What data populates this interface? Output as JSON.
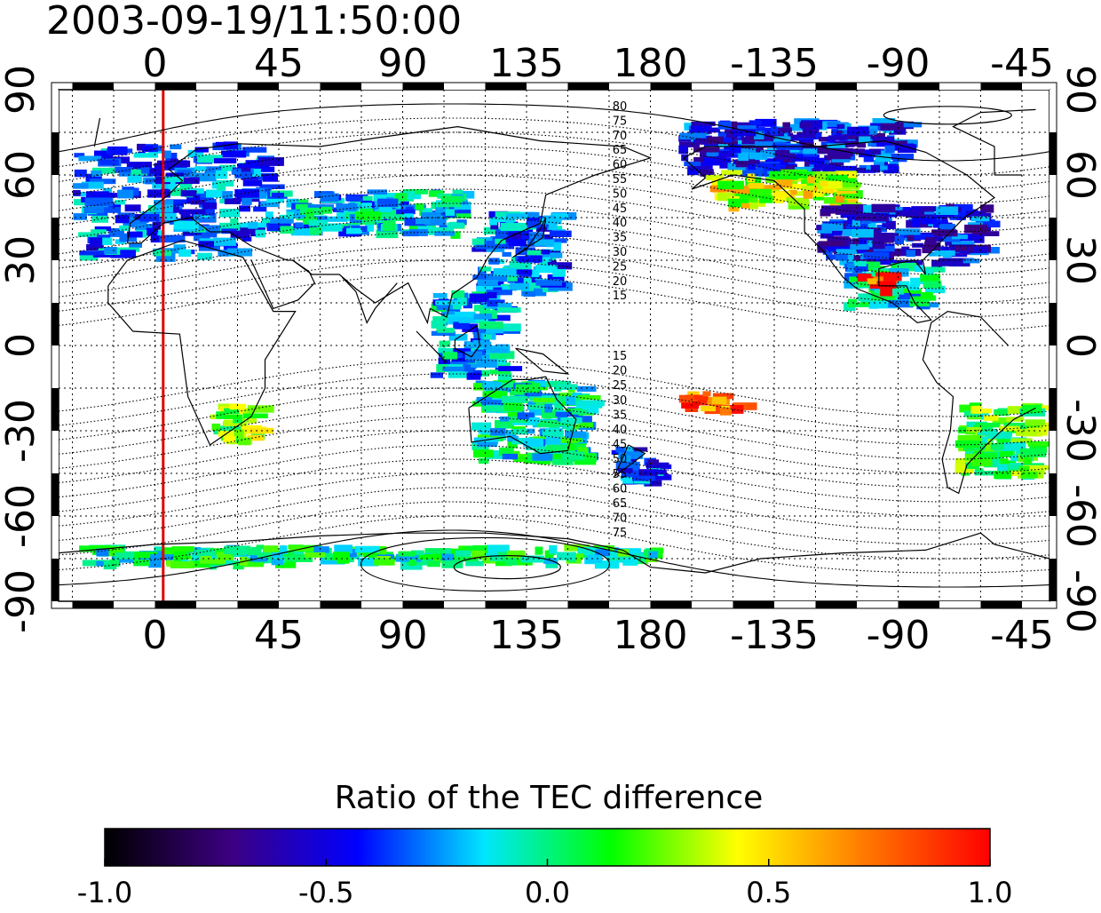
{
  "chart_data": {
    "type": "heatmap",
    "title": "2003-09-19/11:50:00",
    "projection": "equirectangular",
    "x_axis": {
      "center_longitude_deg": 145,
      "lon_range_deg": [
        -35,
        325
      ],
      "ticks": [
        {
          "lon": 0,
          "label": "0"
        },
        {
          "lon": 45,
          "label": "45"
        },
        {
          "lon": 90,
          "label": "90"
        },
        {
          "lon": 135,
          "label": "135"
        },
        {
          "lon": 180,
          "label": "180"
        },
        {
          "lon": 225,
          "label": "-135"
        },
        {
          "lon": 270,
          "label": "-90"
        },
        {
          "lon": 315,
          "label": "-45"
        }
      ]
    },
    "y_axis": {
      "lat_range_deg": [
        -90,
        90
      ],
      "ticks": [
        {
          "lat": 90,
          "label": "90"
        },
        {
          "lat": 60,
          "label": "60"
        },
        {
          "lat": 30,
          "label": "30"
        },
        {
          "lat": 0,
          "label": "0"
        },
        {
          "lat": -30,
          "label": "-30"
        },
        {
          "lat": -60,
          "label": "-60"
        },
        {
          "lat": -90,
          "label": "-90"
        }
      ]
    },
    "grid": true,
    "grid_spacing_deg": 15,
    "highlight_meridian_lon": 3,
    "highlight_color": "#e00000",
    "magnetic_latitude_labels": {
      "north": [
        "80",
        "75",
        "70",
        "65",
        "60",
        "55",
        "50",
        "45",
        "40",
        "35",
        "30",
        "25",
        "20",
        "15"
      ],
      "south": [
        "15",
        "20",
        "25",
        "30",
        "35",
        "40",
        "45",
        "50",
        "55",
        "60",
        "65",
        "70",
        "75"
      ]
    },
    "colorbar": {
      "title": "Ratio of the TEC difference",
      "range": [
        -1.0,
        1.0
      ],
      "tick_labels": [
        "-1.0",
        "-0.5",
        "0.0",
        "0.5",
        "1.0"
      ],
      "colors": [
        "#000000",
        "#3c0082",
        "#0000ff",
        "#00e6ff",
        "#00ff00",
        "#ffff00",
        "#ff7a00",
        "#ff0000"
      ]
    },
    "data_regions": [
      {
        "lon0": -30,
        "lon1": 40,
        "lat0": 32,
        "lat1": 72,
        "value": -0.3
      },
      {
        "lon0": 40,
        "lon1": 110,
        "lat0": 40,
        "lat1": 55,
        "value": -0.15
      },
      {
        "lon0": 115,
        "lon1": 145,
        "lat0": 20,
        "lat1": 48,
        "value": -0.3
      },
      {
        "lon0": 100,
        "lon1": 125,
        "lat0": -10,
        "lat1": 20,
        "value": -0.2
      },
      {
        "lon0": 115,
        "lon1": 155,
        "lat0": -40,
        "lat1": -12,
        "value": -0.05
      },
      {
        "lon0": 165,
        "lon1": 180,
        "lat0": -48,
        "lat1": -35,
        "value": -0.35
      },
      {
        "lon0": 20,
        "lon1": 35,
        "lat0": -33,
        "lat1": -20,
        "value": 0.25
      },
      {
        "lon0": 190,
        "lon1": 270,
        "lat0": 62,
        "lat1": 80,
        "value": -0.45
      },
      {
        "lon0": 200,
        "lon1": 250,
        "lat0": 50,
        "lat1": 62,
        "value": 0.4
      },
      {
        "lon0": 240,
        "lon1": 300,
        "lat0": 30,
        "lat1": 50,
        "value": -0.45
      },
      {
        "lon0": 250,
        "lon1": 280,
        "lat0": 15,
        "lat1": 30,
        "value": -0.1
      },
      {
        "lon0": 290,
        "lon1": 320,
        "lat0": -45,
        "lat1": -20,
        "value": 0.15
      },
      {
        "lon0": -30,
        "lon1": 180,
        "lat0": -76,
        "lat1": -70,
        "value": 0.0
      },
      {
        "lon0": 190,
        "lon1": 210,
        "lat0": -22,
        "lat1": -16,
        "value": 0.75
      },
      {
        "lon0": 255,
        "lon1": 265,
        "lat0": 20,
        "lat1": 26,
        "value": 0.85
      }
    ]
  }
}
